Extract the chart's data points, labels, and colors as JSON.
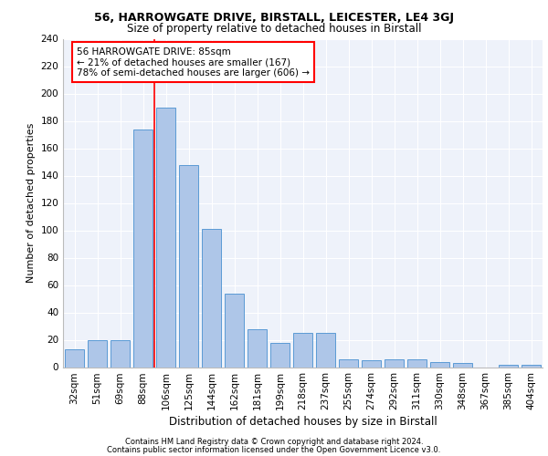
{
  "title1": "56, HARROWGATE DRIVE, BIRSTALL, LEICESTER, LE4 3GJ",
  "title2": "Size of property relative to detached houses in Birstall",
  "xlabel": "Distribution of detached houses by size in Birstall",
  "ylabel": "Number of detached properties",
  "categories": [
    "32sqm",
    "51sqm",
    "69sqm",
    "88sqm",
    "106sqm",
    "125sqm",
    "144sqm",
    "162sqm",
    "181sqm",
    "199sqm",
    "218sqm",
    "237sqm",
    "255sqm",
    "274sqm",
    "292sqm",
    "311sqm",
    "330sqm",
    "348sqm",
    "367sqm",
    "385sqm",
    "404sqm"
  ],
  "values": [
    13,
    20,
    20,
    174,
    190,
    148,
    101,
    54,
    28,
    18,
    25,
    25,
    6,
    5,
    6,
    6,
    4,
    3,
    0,
    2,
    2
  ],
  "bar_color": "#aec6e8",
  "bar_edge_color": "#5b9bd5",
  "vline_x_index": 3.5,
  "vline_color": "red",
  "annotation_text": "56 HARROWGATE DRIVE: 85sqm\n← 21% of detached houses are smaller (167)\n78% of semi-detached houses are larger (606) →",
  "annotation_box_color": "white",
  "annotation_box_edge": "red",
  "footer1": "Contains HM Land Registry data © Crown copyright and database right 2024.",
  "footer2": "Contains public sector information licensed under the Open Government Licence v3.0.",
  "background_color": "#eef2fa",
  "ylim": [
    0,
    240
  ],
  "yticks": [
    0,
    20,
    40,
    60,
    80,
    100,
    120,
    140,
    160,
    180,
    200,
    220,
    240
  ],
  "title1_fontsize": 9,
  "title2_fontsize": 8.5,
  "ylabel_fontsize": 8,
  "xlabel_fontsize": 8.5,
  "tick_fontsize": 7.5,
  "footer_fontsize": 6.0,
  "annot_fontsize": 7.5
}
